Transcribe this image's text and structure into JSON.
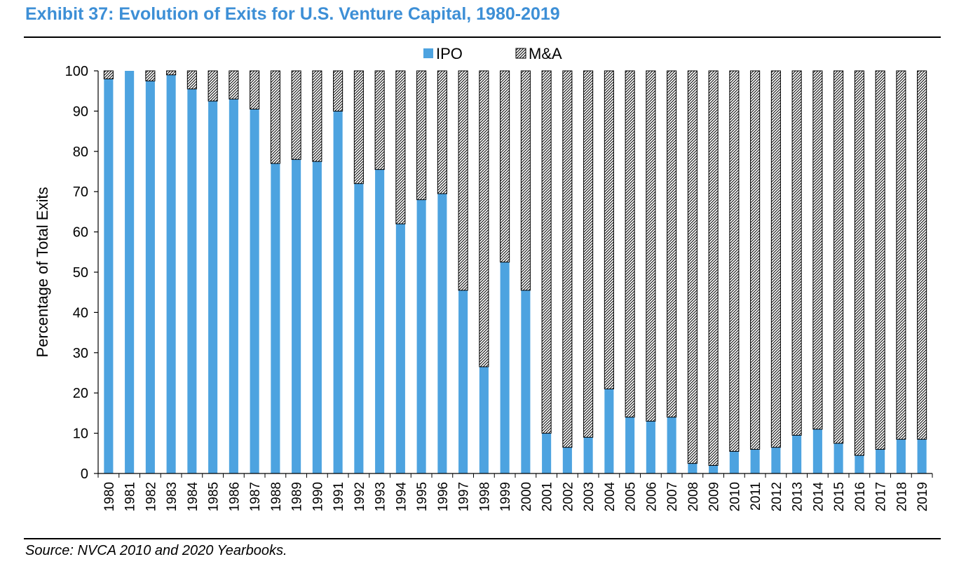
{
  "header": {
    "title": "Exhibit 37: Evolution of Exits for U.S. Venture Capital, 1980-2019"
  },
  "footer": {
    "source": "Source: NVCA 2010 and 2020 Yearbooks."
  },
  "colors": {
    "ipo": "#4da3e0",
    "title": "#3d8fd6",
    "ma_pattern": "hatched"
  },
  "chart_data": {
    "type": "bar",
    "stacked": true,
    "title": "Exhibit 37: Evolution of Exits for U.S. Venture Capital, 1980-2019",
    "xlabel": "",
    "ylabel": "Percentage of Total Exits",
    "ylim": [
      0,
      100
    ],
    "yticks": [
      0,
      10,
      20,
      30,
      40,
      50,
      60,
      70,
      80,
      90,
      100
    ],
    "legend": "top-center",
    "grid": false,
    "categories": [
      "1980",
      "1981",
      "1982",
      "1983",
      "1984",
      "1985",
      "1986",
      "1987",
      "1988",
      "1989",
      "1990",
      "1991",
      "1992",
      "1993",
      "1994",
      "1995",
      "1996",
      "1997",
      "1998",
      "1999",
      "2000",
      "2001",
      "2002",
      "2003",
      "2004",
      "2005",
      "2006",
      "2007",
      "2008",
      "2009",
      "2010",
      "2011",
      "2012",
      "2013",
      "2014",
      "2015",
      "2016",
      "2017",
      "2018",
      "2019"
    ],
    "series": [
      {
        "name": "IPO",
        "values": [
          98,
          100,
          97.5,
          99,
          95.5,
          92.5,
          93,
          90.5,
          77,
          78,
          77.5,
          90,
          72,
          75.5,
          62,
          68,
          69.5,
          45.5,
          26.5,
          52.5,
          45.5,
          10,
          6.5,
          9,
          21,
          14,
          13,
          14,
          2.5,
          2,
          5.5,
          6,
          6.5,
          9.5,
          11,
          7.5,
          4.5,
          6,
          8.5,
          8.5
        ]
      },
      {
        "name": "M&A",
        "values": [
          2,
          0,
          2.5,
          1,
          4.5,
          7.5,
          7,
          9.5,
          23,
          22,
          22.5,
          10,
          28,
          24.5,
          38,
          32,
          30.5,
          54.5,
          73.5,
          47.5,
          54.5,
          90,
          93.5,
          91,
          79,
          86,
          87,
          86,
          97.5,
          98,
          94.5,
          94,
          93.5,
          90.5,
          89,
          92.5,
          95.5,
          94,
          91.5,
          91.5
        ]
      }
    ]
  }
}
